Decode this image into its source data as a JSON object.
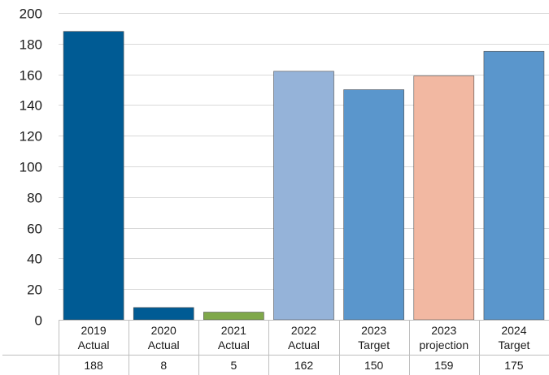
{
  "chart_data": {
    "type": "bar",
    "title": "",
    "xlabel": "",
    "ylabel": "",
    "ylim": [
      0,
      200
    ],
    "yticks": [
      0,
      20,
      40,
      60,
      80,
      100,
      120,
      140,
      160,
      180,
      200
    ],
    "grid": true,
    "categories": [
      [
        "2019",
        "Actual"
      ],
      [
        "2020",
        "Actual"
      ],
      [
        "2021",
        "Actual"
      ],
      [
        "2022",
        "Actual"
      ],
      [
        "2023",
        "Target"
      ],
      [
        "2023",
        "projection"
      ],
      [
        "2024",
        "Target"
      ]
    ],
    "values": [
      188,
      8,
      5,
      162,
      150,
      159,
      175
    ],
    "value_labels": [
      "188",
      "8",
      "5",
      "162",
      "150",
      "159",
      "175"
    ],
    "colors": [
      "#005b94",
      "#005b94",
      "#7fa84a",
      "#95b3d9",
      "#5a96cc",
      "#f2b8a2",
      "#5a96cc"
    ],
    "grid_color": "#d9d9d9",
    "table_line_color": "#bfbfbf"
  }
}
